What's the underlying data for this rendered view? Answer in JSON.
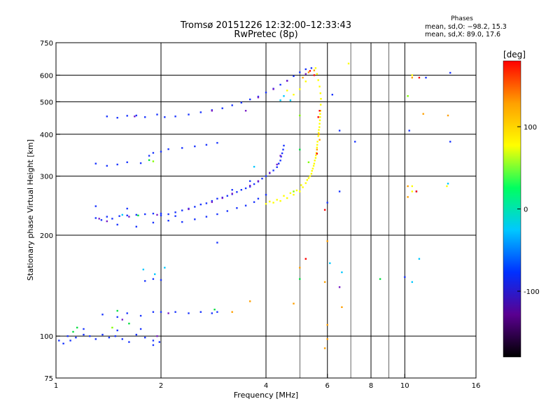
{
  "header": {
    "title_line1": "Tromsø 20151226 12:32:00–12:33:43",
    "title_line2": "RwPretec (8p)",
    "phases_label": "Phases",
    "phase_o": "mean, sd,O: −98.2, 15.3",
    "phase_x": "mean, sd,X:  89.0, 17.6"
  },
  "chart_data": {
    "type": "scatter",
    "xlabel": "Frequency [MHz]",
    "ylabel": "Stationary phase Virtual Height [km]",
    "xscale": "log",
    "yscale": "log",
    "xlim": [
      1,
      16
    ],
    "ylim": [
      75,
      750
    ],
    "x_ticks": [
      1,
      2,
      4,
      6,
      8,
      10,
      16
    ],
    "x_tick_labels": [
      "1",
      "2",
      "4",
      "6",
      "8",
      "10",
      "16"
    ],
    "x_grid": [
      2,
      4,
      6,
      8,
      10
    ],
    "x_minor_grid": [
      5,
      7,
      9
    ],
    "y_ticks": [
      75,
      100,
      200,
      300,
      400,
      500,
      600,
      750
    ],
    "y_tick_labels": [
      "75",
      "100",
      "200",
      "300",
      "400",
      "500",
      "600",
      "750"
    ],
    "y_grid": [
      100,
      200,
      300,
      400,
      500,
      600
    ],
    "grid": true,
    "colorbar": {
      "label": "[deg]",
      "range": [
        -180,
        180
      ],
      "ticks": [
        100,
        0,
        -100
      ],
      "tick_labels": [
        "100",
        "0",
        "-100"
      ],
      "colors": [
        "#000000",
        "#5a0090",
        "#0030ff",
        "#00c8ff",
        "#00ff60",
        "#ffff00",
        "#ffa000",
        "#ff0000"
      ]
    },
    "series": [
      {
        "color": "#1a35ff",
        "points": [
          [
            1.02,
            97
          ],
          [
            1.05,
            95
          ],
          [
            1.08,
            100
          ],
          [
            1.1,
            97
          ],
          [
            1.14,
            99
          ],
          [
            1.2,
            101
          ],
          [
            1.25,
            100
          ],
          [
            1.3,
            98
          ],
          [
            1.36,
            101
          ],
          [
            1.42,
            99
          ],
          [
            1.48,
            100
          ],
          [
            1.55,
            98
          ],
          [
            1.62,
            96
          ],
          [
            1.7,
            101
          ],
          [
            1.8,
            99
          ],
          [
            1.9,
            97
          ],
          [
            1.98,
            96
          ],
          [
            1.36,
            116
          ],
          [
            1.5,
            114
          ],
          [
            1.6,
            117
          ],
          [
            1.75,
            115
          ],
          [
            1.9,
            118
          ],
          [
            2.0,
            118
          ],
          [
            2.2,
            118
          ],
          [
            2.4,
            117
          ],
          [
            2.6,
            118
          ],
          [
            2.8,
            117
          ],
          [
            2.9,
            118
          ],
          [
            1.8,
            146
          ],
          [
            1.9,
            148
          ],
          [
            2.0,
            147
          ],
          [
            1.3,
            225
          ],
          [
            1.35,
            222
          ],
          [
            1.4,
            227
          ],
          [
            1.45,
            224
          ],
          [
            1.52,
            228
          ],
          [
            1.6,
            229
          ],
          [
            1.7,
            230
          ],
          [
            1.8,
            231
          ],
          [
            1.9,
            232
          ],
          [
            2.0,
            232
          ],
          [
            2.1,
            231
          ],
          [
            2.2,
            234
          ],
          [
            2.3,
            237
          ],
          [
            2.4,
            240
          ],
          [
            2.5,
            243
          ],
          [
            2.6,
            247
          ],
          [
            2.7,
            249
          ],
          [
            2.8,
            253
          ],
          [
            2.9,
            257
          ],
          [
            3.0,
            259
          ],
          [
            3.1,
            262
          ],
          [
            3.2,
            265
          ],
          [
            3.3,
            269
          ],
          [
            3.4,
            273
          ],
          [
            3.5,
            276
          ],
          [
            3.6,
            279
          ],
          [
            3.7,
            284
          ],
          [
            3.8,
            289
          ],
          [
            3.9,
            295
          ],
          [
            4.0,
            300
          ],
          [
            4.1,
            306
          ],
          [
            4.2,
            312
          ],
          [
            4.3,
            319
          ],
          [
            4.35,
            327
          ],
          [
            4.4,
            334
          ],
          [
            4.42,
            343
          ],
          [
            4.45,
            351
          ],
          [
            4.48,
            360
          ],
          [
            4.5,
            370
          ],
          [
            1.5,
            215
          ],
          [
            1.7,
            212
          ],
          [
            1.9,
            218
          ],
          [
            2.1,
            221
          ],
          [
            2.3,
            219
          ],
          [
            2.5,
            223
          ],
          [
            2.7,
            227
          ],
          [
            2.9,
            231
          ],
          [
            3.1,
            236
          ],
          [
            3.3,
            241
          ],
          [
            3.5,
            245
          ],
          [
            3.7,
            251
          ],
          [
            3.8,
            257
          ],
          [
            4.0,
            264
          ],
          [
            1.3,
            327
          ],
          [
            1.4,
            322
          ],
          [
            1.5,
            325
          ],
          [
            1.6,
            330
          ],
          [
            1.75,
            328
          ],
          [
            1.85,
            345
          ],
          [
            1.9,
            352
          ],
          [
            2.0,
            355
          ],
          [
            2.1,
            361
          ],
          [
            1.4,
            452
          ],
          [
            1.5,
            448
          ],
          [
            1.6,
            454
          ],
          [
            1.7,
            455
          ],
          [
            1.8,
            450
          ],
          [
            1.95,
            458
          ],
          [
            2.05,
            450
          ],
          [
            2.2,
            452
          ],
          [
            2.4,
            458
          ],
          [
            2.6,
            465
          ],
          [
            2.8,
            472
          ],
          [
            3.0,
            478
          ],
          [
            3.2,
            488
          ],
          [
            3.4,
            497
          ],
          [
            3.6,
            508
          ],
          [
            3.8,
            518
          ],
          [
            4.0,
            533
          ],
          [
            4.2,
            547
          ],
          [
            4.4,
            562
          ],
          [
            4.6,
            578
          ],
          [
            4.8,
            596
          ],
          [
            5.0,
            612
          ],
          [
            5.2,
            625
          ],
          [
            5.4,
            630
          ],
          [
            2.3,
            364
          ],
          [
            2.5,
            368
          ],
          [
            2.7,
            372
          ],
          [
            2.9,
            377
          ],
          [
            2.0,
            229
          ],
          [
            2.2,
            228
          ],
          [
            3.2,
            273
          ],
          [
            3.6,
            290
          ],
          [
            1.9,
            94
          ],
          [
            1.2,
            105
          ],
          [
            1.5,
            104
          ],
          [
            1.75,
            105
          ],
          [
            1.3,
            244
          ],
          [
            1.6,
            240
          ],
          [
            2.9,
            190
          ],
          [
            6.5,
            270
          ],
          [
            10.8,
            270
          ],
          [
            13.5,
            380
          ],
          [
            13.5,
            610
          ],
          [
            10.3,
            410
          ],
          [
            6.2,
            525
          ],
          [
            6.5,
            410
          ],
          [
            7.2,
            380
          ],
          [
            6.0,
            250
          ],
          [
            10.0,
            150
          ],
          [
            11.5,
            590
          ]
        ]
      },
      {
        "color": "#7a1ec8",
        "points": [
          [
            1.33,
            224
          ],
          [
            1.62,
            227
          ],
          [
            1.95,
            230
          ],
          [
            2.4,
            239
          ],
          [
            2.8,
            251
          ],
          [
            3.2,
            266
          ],
          [
            3.6,
            281
          ],
          [
            3.8,
            290
          ],
          [
            4.1,
            307
          ],
          [
            4.3,
            325
          ],
          [
            3.5,
            470
          ],
          [
            3.8,
            515
          ],
          [
            4.2,
            545
          ],
          [
            4.6,
            577
          ],
          [
            1.55,
            112
          ],
          [
            2.1,
            117
          ],
          [
            1.68,
            452
          ],
          [
            2.8,
            470
          ],
          [
            1.4,
            220
          ],
          [
            3.0,
            258
          ],
          [
            4.4,
            345
          ],
          [
            5.2,
            605
          ],
          [
            6.5,
            140
          ],
          [
            1.95,
            100
          ]
        ]
      },
      {
        "color": "#ffff00",
        "points": [
          [
            4.0,
            248
          ],
          [
            4.2,
            250
          ],
          [
            4.4,
            253
          ],
          [
            4.6,
            258
          ],
          [
            4.8,
            264
          ],
          [
            5.0,
            270
          ],
          [
            5.1,
            278
          ],
          [
            5.2,
            286
          ],
          [
            5.3,
            296
          ],
          [
            5.4,
            305
          ],
          [
            5.45,
            316
          ],
          [
            5.5,
            327
          ],
          [
            5.55,
            340
          ],
          [
            5.58,
            352
          ],
          [
            5.6,
            365
          ],
          [
            5.62,
            380
          ],
          [
            5.65,
            395
          ],
          [
            5.67,
            412
          ],
          [
            5.7,
            430
          ],
          [
            5.72,
            450
          ],
          [
            5.73,
            470
          ],
          [
            5.74,
            490
          ],
          [
            5.75,
            510
          ],
          [
            5.73,
            530
          ],
          [
            5.7,
            555
          ],
          [
            5.65,
            580
          ],
          [
            5.6,
            605
          ],
          [
            5.55,
            630
          ],
          [
            4.1,
            252
          ],
          [
            4.3,
            255
          ],
          [
            4.5,
            262
          ],
          [
            4.7,
            267
          ],
          [
            4.9,
            272
          ],
          [
            5.05,
            282
          ],
          [
            5.25,
            292
          ],
          [
            5.35,
            300
          ],
          [
            5.42,
            311
          ],
          [
            5.48,
            322
          ],
          [
            5.52,
            334
          ],
          [
            5.56,
            346
          ],
          [
            5.61,
            372
          ],
          [
            5.66,
            404
          ],
          [
            5.69,
            420
          ],
          [
            5.71,
            440
          ],
          [
            5.72,
            460
          ],
          [
            4.6,
            540
          ],
          [
            4.8,
            525
          ],
          [
            5.0,
            545
          ],
          [
            5.2,
            575
          ],
          [
            6.9,
            650
          ],
          [
            10.5,
            600
          ],
          [
            10.5,
            270
          ],
          [
            13.2,
            280
          ],
          [
            10.5,
            280
          ]
        ]
      },
      {
        "color": "#ffa000",
        "points": [
          [
            5.68,
            400
          ],
          [
            5.7,
            385
          ],
          [
            5.6,
            360
          ],
          [
            5.5,
            620
          ],
          [
            5.3,
            612
          ],
          [
            5.1,
            590
          ],
          [
            6.0,
            108
          ],
          [
            6.0,
            98
          ],
          [
            5.9,
            145
          ],
          [
            6.6,
            122
          ],
          [
            4.8,
            125
          ],
          [
            3.2,
            118
          ],
          [
            3.6,
            127
          ],
          [
            5.0,
            160
          ],
          [
            10.2,
            280
          ],
          [
            11.3,
            460
          ],
          [
            13.3,
            455
          ],
          [
            10.5,
            590
          ],
          [
            6.0,
            192
          ],
          [
            10.2,
            260
          ],
          [
            5.9,
            92
          ]
        ]
      },
      {
        "color": "#ff0000",
        "points": [
          [
            5.65,
            450
          ],
          [
            5.7,
            470
          ],
          [
            5.5,
            600
          ],
          [
            5.35,
            618
          ],
          [
            5.2,
            170
          ],
          [
            11.0,
            590
          ],
          [
            10.8,
            270
          ],
          [
            5.6,
            350
          ],
          [
            5.9,
            238
          ]
        ]
      },
      {
        "color": "#00c8ff",
        "points": [
          [
            1.78,
            158
          ],
          [
            1.92,
            153
          ],
          [
            2.05,
            160
          ],
          [
            6.1,
            165
          ],
          [
            6.6,
            155
          ],
          [
            13.3,
            285
          ],
          [
            11.0,
            170
          ],
          [
            10.5,
            145
          ],
          [
            4.4,
            505
          ],
          [
            4.5,
            520
          ],
          [
            4.7,
            505
          ],
          [
            3.7,
            320
          ],
          [
            1.55,
            230
          ]
        ]
      },
      {
        "color": "#00e040",
        "points": [
          [
            1.12,
            103
          ],
          [
            1.15,
            106
          ],
          [
            1.5,
            119
          ],
          [
            1.62,
            109
          ],
          [
            5.0,
            148
          ],
          [
            8.5,
            148
          ],
          [
            5.0,
            360
          ],
          [
            2.85,
            120
          ],
          [
            1.72,
            229
          ],
          [
            1.85,
            335
          ]
        ]
      },
      {
        "color": "#80ff00",
        "points": [
          [
            1.9,
            332
          ],
          [
            4.8,
            270
          ],
          [
            5.0,
            455
          ],
          [
            5.3,
            330
          ],
          [
            1.45,
            106
          ],
          [
            10.2,
            520
          ]
        ]
      }
    ]
  }
}
